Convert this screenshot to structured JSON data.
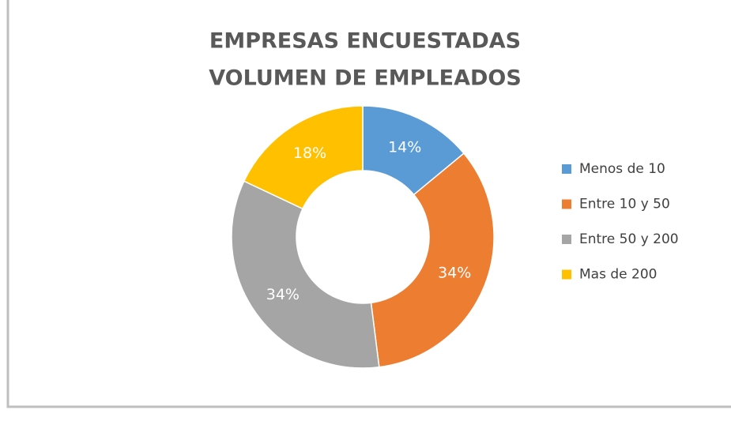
{
  "chart_data": {
    "type": "donut",
    "title": [
      "EMPRESAS ENCUESTADAS",
      "VOLUMEN DE EMPLEADOS"
    ],
    "categories": [
      "Menos de 10",
      "Entre 10 y 50",
      "Entre 50 y 200",
      "Mas de 200"
    ],
    "values": [
      14,
      34,
      34,
      18
    ],
    "value_labels": [
      "14%",
      "34%",
      "34%",
      "18%"
    ],
    "colors": [
      "#5b9bd5",
      "#ed7d31",
      "#a5a5a5",
      "#ffc000"
    ],
    "legend": "right"
  }
}
